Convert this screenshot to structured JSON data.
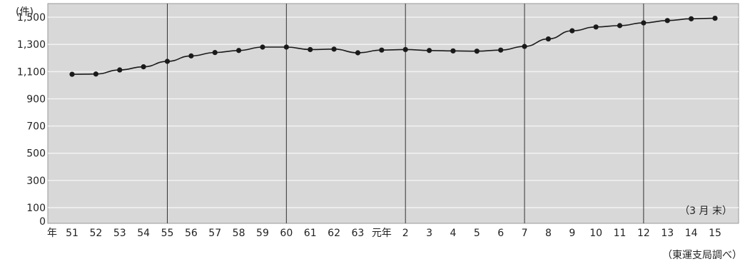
{
  "chart_data": {
    "type": "line",
    "y_unit": "(件)",
    "note": "（3 月 末）",
    "source": "（東運支局調べ）",
    "x_axis_prefix": "年",
    "ylim": [
      0,
      1600
    ],
    "yticks": [
      "0",
      "100",
      "300",
      "500",
      "700",
      "900",
      "1,100",
      "1,300",
      "1,500"
    ],
    "ytick_values": [
      0,
      100,
      300,
      500,
      700,
      900,
      1100,
      1300,
      1500
    ],
    "categories": [
      "51",
      "52",
      "53",
      "54",
      "55",
      "56",
      "57",
      "58",
      "59",
      "60",
      "61",
      "62",
      "63",
      "元年",
      "2",
      "3",
      "4",
      "5",
      "6",
      "7",
      "8",
      "9",
      "10",
      "11",
      "12",
      "13",
      "14",
      "15"
    ],
    "series": [
      {
        "values": [
          1080,
          1082,
          1112,
          1135,
          1175,
          1215,
          1240,
          1255,
          1280,
          1280,
          1262,
          1265,
          1238,
          1258,
          1262,
          1255,
          1252,
          1250,
          1258,
          1285,
          1340,
          1400,
          1428,
          1438,
          1458,
          1475,
          1488,
          1492
        ]
      }
    ],
    "vertical_separators_after": [
      "55",
      "60",
      "2",
      "7",
      "12"
    ],
    "grid": true
  },
  "colors": {
    "plot_background": "#d8d8d8",
    "gridline": "#f2f2f2",
    "line": "#1a1a1a",
    "separator": "#333333"
  }
}
